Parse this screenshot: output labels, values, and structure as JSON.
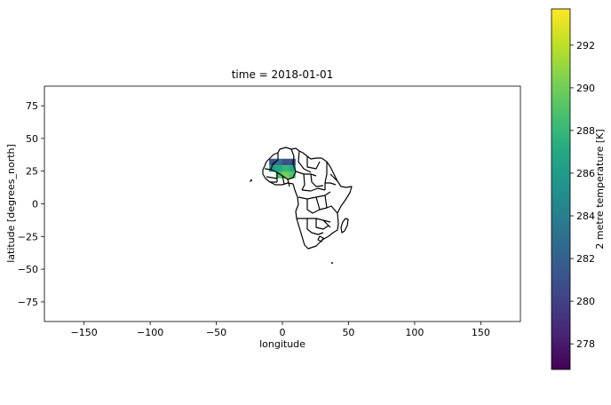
{
  "chart_data": {
    "type": "heatmap",
    "title": "time = 2018-01-01",
    "xlabel": "longitude",
    "ylabel": "latitude [degrees_north]",
    "xlim": [
      -180,
      180
    ],
    "ylim": [
      -90,
      90
    ],
    "xticks": [
      -150,
      -100,
      -50,
      0,
      50,
      100,
      150
    ],
    "yticks": [
      75,
      50,
      25,
      0,
      -25,
      -50,
      -75
    ],
    "colorbar": {
      "label": "2 metre temperature [K]",
      "range": [
        276.8,
        293.7
      ],
      "ticks": [
        278,
        280,
        282,
        284,
        286,
        288,
        290,
        292
      ],
      "colormap": "viridis"
    },
    "grid": false,
    "data_region": "Algeria",
    "cells": [
      {
        "lon": -7.5,
        "lat": 32,
        "value": 281
      },
      {
        "lon": -2.5,
        "lat": 32,
        "value": 283
      },
      {
        "lon": 2.5,
        "lat": 32,
        "value": 281
      },
      {
        "lon": 7.5,
        "lat": 32,
        "value": 281
      },
      {
        "lon": -7.5,
        "lat": 27,
        "value": 286
      },
      {
        "lon": -2.5,
        "lat": 27,
        "value": 287
      },
      {
        "lon": 2.5,
        "lat": 27,
        "value": 288
      },
      {
        "lon": 7.5,
        "lat": 27,
        "value": 287
      },
      {
        "lon": -2.5,
        "lat": 22,
        "value": 289
      },
      {
        "lon": 2.5,
        "lat": 22,
        "value": 290
      },
      {
        "lon": 7.5,
        "lat": 22,
        "value": 289
      }
    ]
  }
}
